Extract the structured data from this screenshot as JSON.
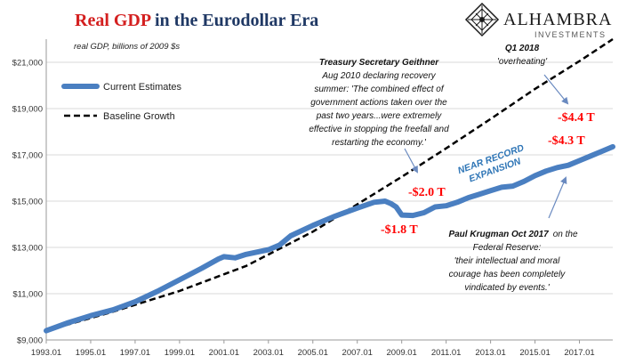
{
  "chart_data": {
    "type": "line",
    "title_red": "Real GDP",
    "title_rest": " in the Eurodollar Era",
    "subtitle": "real GDP, billions of 2009 $s",
    "brand": {
      "name": "ALHAMBRA",
      "tagline": "INVESTMENTS"
    },
    "colors": {
      "title_red": "#d42020",
      "title_navy": "#1f3864",
      "current": "#4a7fc1",
      "baseline": "#000000",
      "annotation_red": "#ff0000",
      "annotation_blue": "#2e75b6",
      "arrow": "#6a8ac0",
      "grid": "#d9d9d9"
    },
    "x_axis": {
      "range": [
        1993.0,
        2018.5
      ],
      "ticks": [
        {
          "value": 1993.0,
          "label": "1993.01"
        },
        {
          "value": 1995.0,
          "label": "1995.01"
        },
        {
          "value": 1997.0,
          "label": "1997.01"
        },
        {
          "value": 1999.0,
          "label": "1999.01"
        },
        {
          "value": 2001.0,
          "label": "2001.01"
        },
        {
          "value": 2003.0,
          "label": "2003.01"
        },
        {
          "value": 2005.0,
          "label": "2005.01"
        },
        {
          "value": 2007.0,
          "label": "2007.01"
        },
        {
          "value": 2009.0,
          "label": "2009.01"
        },
        {
          "value": 2011.0,
          "label": "2011.01"
        },
        {
          "value": 2013.0,
          "label": "2013.01"
        },
        {
          "value": 2015.0,
          "label": "2015.01"
        },
        {
          "value": 2017.0,
          "label": "2017.01"
        }
      ]
    },
    "y_axis": {
      "range": [
        9000,
        22000
      ],
      "ticks": [
        {
          "value": 9000,
          "label": "$9,000"
        },
        {
          "value": 11000,
          "label": "$11,000"
        },
        {
          "value": 13000,
          "label": "$13,000"
        },
        {
          "value": 15000,
          "label": "$15,000"
        },
        {
          "value": 17000,
          "label": "$17,000"
        },
        {
          "value": 19000,
          "label": "$19,000"
        },
        {
          "value": 21000,
          "label": "$21,000"
        }
      ],
      "grid": true
    },
    "legend": {
      "placement": "top-left",
      "items": [
        {
          "label": "Current Estimates",
          "series": "current"
        },
        {
          "label": "Baseline Growth",
          "series": "baseline"
        }
      ]
    },
    "series": [
      {
        "name": "Current Estimates",
        "key": "current",
        "points": [
          [
            1993.0,
            9400
          ],
          [
            1994.0,
            9750
          ],
          [
            1995.0,
            10050
          ],
          [
            1996.0,
            10300
          ],
          [
            1997.0,
            10650
          ],
          [
            1998.0,
            11100
          ],
          [
            1999.0,
            11600
          ],
          [
            2000.0,
            12100
          ],
          [
            2000.75,
            12500
          ],
          [
            2001.0,
            12600
          ],
          [
            2001.5,
            12550
          ],
          [
            2002.0,
            12700
          ],
          [
            2003.0,
            12900
          ],
          [
            2003.5,
            13100
          ],
          [
            2004.0,
            13500
          ],
          [
            2005.0,
            13950
          ],
          [
            2006.0,
            14350
          ],
          [
            2007.0,
            14700
          ],
          [
            2007.75,
            14950
          ],
          [
            2008.25,
            15000
          ],
          [
            2008.5,
            14900
          ],
          [
            2008.75,
            14750
          ],
          [
            2009.0,
            14400
          ],
          [
            2009.5,
            14380
          ],
          [
            2010.0,
            14500
          ],
          [
            2010.5,
            14750
          ],
          [
            2011.0,
            14800
          ],
          [
            2011.5,
            14950
          ],
          [
            2012.0,
            15150
          ],
          [
            2012.5,
            15300
          ],
          [
            2013.0,
            15450
          ],
          [
            2013.5,
            15600
          ],
          [
            2014.0,
            15650
          ],
          [
            2014.5,
            15850
          ],
          [
            2015.0,
            16100
          ],
          [
            2015.5,
            16300
          ],
          [
            2016.0,
            16450
          ],
          [
            2016.5,
            16550
          ],
          [
            2017.0,
            16750
          ],
          [
            2017.5,
            16950
          ],
          [
            2018.0,
            17150
          ],
          [
            2018.5,
            17350
          ]
        ]
      },
      {
        "name": "Baseline Growth",
        "key": "baseline",
        "points": [
          [
            1993.0,
            9400
          ],
          [
            1996.0,
            10220
          ],
          [
            1999.0,
            11120
          ],
          [
            2002.0,
            12200
          ],
          [
            2005.0,
            13680
          ],
          [
            2007.0,
            14860
          ],
          [
            2009.0,
            16050
          ],
          [
            2011.0,
            17280
          ],
          [
            2013.0,
            18550
          ],
          [
            2015.0,
            19850
          ],
          [
            2017.0,
            21050
          ],
          [
            2018.5,
            22000
          ]
        ]
      }
    ],
    "annotations": {
      "geithner": {
        "title": "Treasury Secretary Geithner",
        "lines": [
          "Aug 2010  declaring recovery",
          "summer: 'The combined effect of",
          "government actions taken over the",
          "past two years...were extremely",
          "effective in stopping the freefall and",
          "restarting the economy.'"
        ]
      },
      "q1_2018": {
        "title": "Q1 2018",
        "quote": "'overheating'"
      },
      "krugman": {
        "title": "Paul Krugman Oct 2017",
        "lines": [
          "on the",
          "Federal Reserve:",
          "'their intellectual and moral",
          "courage has been completely",
          "vindicated by events.'"
        ]
      },
      "near_record": [
        "NEAR RECORD",
        "EXPANSION"
      ],
      "gaps": {
        "gap_2_0": "-$2.0 T",
        "gap_1_8": "-$1.8 T",
        "gap_4_4": "-$4.4 T",
        "gap_4_3": "-$4.3 T"
      }
    }
  }
}
